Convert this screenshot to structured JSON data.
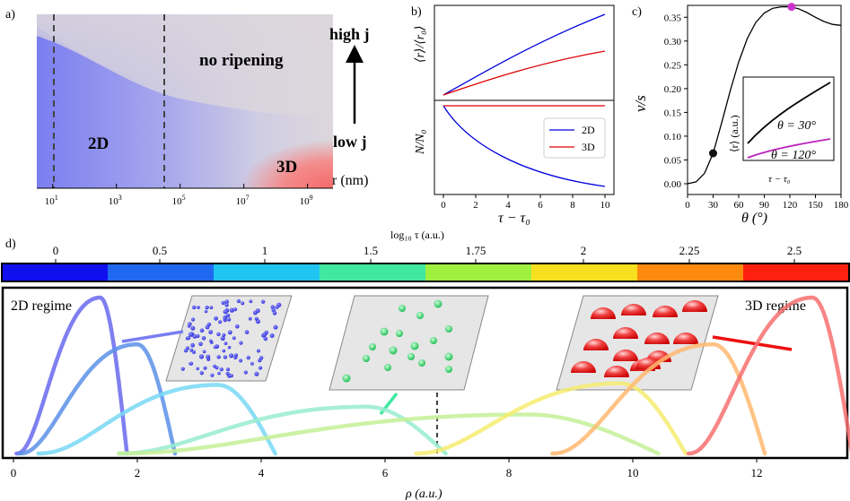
{
  "chart_data": [
    {
      "type": "heatmap",
      "panel_label": "a)",
      "xlabel": "r (nm)",
      "x_scale": "log",
      "x_ticks": [
        {
          "base": "10",
          "exp": "1"
        },
        {
          "base": "10",
          "exp": "3"
        },
        {
          "base": "10",
          "exp": "5"
        },
        {
          "base": "10",
          "exp": "7"
        },
        {
          "base": "10",
          "exp": "9"
        }
      ],
      "dashed_lines_x_log10": [
        1.0,
        4.5
      ],
      "region_labels": {
        "r2d": "2D",
        "r3d": "3D",
        "none": "no  ripening"
      },
      "arrow_labels": {
        "top": "high j",
        "bottom": "low j"
      },
      "colors": {
        "2d": "#7b7ef0",
        "3d": "#f36f6f",
        "none": "#dcd7dc"
      }
    },
    {
      "type": "line",
      "panel_label": "b)",
      "xlabel": "τ − τ₀",
      "x_ticks": [
        "0",
        "2",
        "4",
        "6",
        "8",
        "10"
      ],
      "xlim": [
        0,
        10
      ],
      "top_ylabel": "⟨r⟩/⟨r₀⟩",
      "bottom_ylabel": "N/N₀",
      "series": [
        {
          "name": "2D",
          "color": "#0000dd"
        },
        {
          "name": "3D",
          "color": "#dd0000"
        }
      ]
    },
    {
      "type": "line",
      "panel_label": "c)",
      "xlabel": "θ (°)",
      "ylabel": "v/s",
      "x_ticks": [
        "0",
        "30",
        "60",
        "90",
        "120",
        "150",
        "180"
      ],
      "xlim": [
        0,
        180
      ],
      "y_ticks": [
        "0.00",
        "0.05",
        "0.10",
        "0.15",
        "0.20",
        "0.25",
        "0.30",
        "0.35"
      ],
      "ylim": [
        0,
        0.375
      ],
      "points": [
        {
          "theta": 0,
          "v": 0.0
        },
        {
          "theta": 10,
          "v": 0.004
        },
        {
          "theta": 20,
          "v": 0.022
        },
        {
          "theta": 30,
          "v": 0.064
        },
        {
          "theta": 40,
          "v": 0.128
        },
        {
          "theta": 50,
          "v": 0.195
        },
        {
          "theta": 60,
          "v": 0.256
        },
        {
          "theta": 70,
          "v": 0.305
        },
        {
          "theta": 80,
          "v": 0.339
        },
        {
          "theta": 90,
          "v": 0.359
        },
        {
          "theta": 100,
          "v": 0.369
        },
        {
          "theta": 110,
          "v": 0.372
        },
        {
          "theta": 120,
          "v": 0.372
        },
        {
          "theta": 130,
          "v": 0.368
        },
        {
          "theta": 140,
          "v": 0.36
        },
        {
          "theta": 150,
          "v": 0.35
        },
        {
          "theta": 160,
          "v": 0.341
        },
        {
          "theta": 170,
          "v": 0.335
        },
        {
          "theta": 180,
          "v": 0.333
        }
      ],
      "markers": [
        {
          "theta": 30,
          "v": 0.064,
          "color": "#111111"
        },
        {
          "theta": 122,
          "v": 0.372,
          "color": "#cc33cc"
        }
      ],
      "inset": {
        "ylabel": "⟨r⟩ (a.u.)",
        "xlabel": "τ − τ₀",
        "series": [
          {
            "name": "θ = 30°",
            "color": "#000000"
          },
          {
            "name": "θ = 120°",
            "color": "#bb22bb"
          }
        ]
      }
    },
    {
      "type": "line",
      "panel_label": "d)",
      "xlabel": "ρ (a.u.)",
      "x_ticks": [
        "0",
        "2",
        "4",
        "6",
        "8",
        "10",
        "12"
      ],
      "xlim": [
        0,
        13.5
      ],
      "colorbar": {
        "label": "log₁₀ τ (a.u.)",
        "ticks": [
          "0",
          "0.5",
          "1",
          "1.5",
          "1.75",
          "2",
          "2.25",
          "2.5"
        ],
        "colors": [
          "#1010ee",
          "#2068f0",
          "#20c4f0",
          "#40e8a0",
          "#a0f040",
          "#f8e020",
          "#ff8a10",
          "#ff2010"
        ]
      },
      "regime_labels": {
        "left": "2D regime",
        "right": "3D regime"
      },
      "series": [
        {
          "color": "#6868ee",
          "peak_x": 1.4,
          "peak_y": 1.0
        },
        {
          "color": "#5a90e8",
          "peak_x": 2.0,
          "peak_y": 0.7
        },
        {
          "color": "#78d8f4",
          "peak_x": 3.3,
          "peak_y": 0.44
        },
        {
          "color": "#98ecd0",
          "peak_x": 5.7,
          "peak_y": 0.3
        },
        {
          "color": "#c4f098",
          "peak_x": 8.3,
          "peak_y": 0.25
        },
        {
          "color": "#f6ec70",
          "peak_x": 9.8,
          "peak_y": 0.45
        },
        {
          "color": "#ffb870",
          "peak_x": 11.3,
          "peak_y": 0.7
        },
        {
          "color": "#f77070",
          "peak_x": 12.9,
          "peak_y": 1.0
        }
      ],
      "dashed_line_x": 6.85
    }
  ]
}
